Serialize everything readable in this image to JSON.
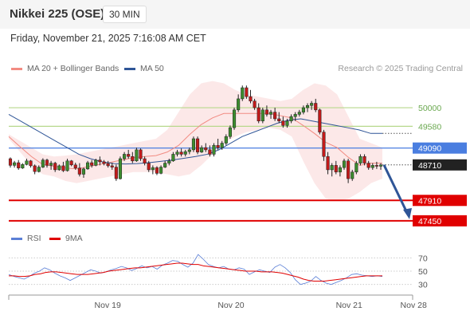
{
  "header": {
    "title": "Nikkei 225 (OSE)",
    "timeframe": "30 MIN"
  },
  "datetime": "Friday, November 21, 2025 7:16:08 AM CET",
  "legend": {
    "bollinger": {
      "label": "MA 20 + Bollinger Bands",
      "color": "#f28b82"
    },
    "ma50": {
      "label": "MA 50",
      "color": "#2f5597"
    }
  },
  "copyright": "Research © 2025 Trading Central",
  "rsi_legend": {
    "rsi": {
      "label": "RSI",
      "color": "#5b7fd6"
    },
    "ma9": {
      "label": "9MA",
      "color": "#e00000"
    }
  },
  "chart_data": {
    "type": "candlestick",
    "instrument": "Nikkei 225 (OSE)",
    "interval": "30 MIN",
    "price_range": [
      47250,
      50630
    ],
    "x_labels": [
      "Nov 19",
      "Nov 20",
      "Nov 21",
      "Nov 28"
    ],
    "x_label_positions": [
      0.227,
      0.51,
      0.781,
      0.929
    ],
    "resistance": [
      50000,
      49580
    ],
    "support": [
      47910,
      47450
    ],
    "pivot": 49090,
    "last_price": 48710,
    "levels_labeled": [
      "50000",
      "49580",
      "49090",
      "48710",
      "47910",
      "47450"
    ],
    "projection": {
      "from": 48710,
      "to": 47450,
      "direction": "down"
    },
    "candles": [
      [
        48850,
        48880,
        48650,
        48700
      ],
      [
        48700,
        48800,
        48650,
        48760
      ],
      [
        48760,
        48820,
        48600,
        48640
      ],
      [
        48640,
        48750,
        48620,
        48720
      ],
      [
        48720,
        48850,
        48700,
        48800
      ],
      [
        48800,
        48820,
        48650,
        48690
      ],
      [
        48690,
        48720,
        48500,
        48560
      ],
      [
        48560,
        48700,
        48540,
        48660
      ],
      [
        48660,
        48860,
        48640,
        48820
      ],
      [
        48820,
        48850,
        48650,
        48700
      ],
      [
        48700,
        48800,
        48600,
        48750
      ],
      [
        48750,
        48780,
        48550,
        48600
      ],
      [
        48600,
        48720,
        48580,
        48690
      ],
      [
        48690,
        48780,
        48550,
        48580
      ],
      [
        48580,
        48850,
        48560,
        48800
      ],
      [
        48800,
        48820,
        48680,
        48710
      ],
      [
        48710,
        48760,
        48600,
        48640
      ],
      [
        48640,
        48750,
        48450,
        48500
      ],
      [
        48500,
        48650,
        48420,
        48620
      ],
      [
        48620,
        48800,
        48600,
        48760
      ],
      [
        48760,
        48820,
        48650,
        48700
      ],
      [
        48700,
        48850,
        48680,
        48820
      ],
      [
        48820,
        48900,
        48700,
        48780
      ],
      [
        48780,
        48820,
        48700,
        48740
      ],
      [
        48740,
        48800,
        48650,
        48690
      ],
      [
        48690,
        48760,
        48600,
        48660
      ],
      [
        48660,
        48720,
        48350,
        48400
      ],
      [
        48400,
        48900,
        48380,
        48850
      ],
      [
        48850,
        49000,
        48800,
        48950
      ],
      [
        48950,
        49050,
        48850,
        48900
      ],
      [
        48900,
        49000,
        48750,
        48800
      ],
      [
        48800,
        49100,
        48780,
        49050
      ],
      [
        49050,
        49080,
        48800,
        48850
      ],
      [
        48850,
        48900,
        48700,
        48750
      ],
      [
        48750,
        48800,
        48550,
        48600
      ],
      [
        48600,
        48700,
        48500,
        48650
      ],
      [
        48650,
        48680,
        48480,
        48520
      ],
      [
        48520,
        48700,
        48500,
        48660
      ],
      [
        48660,
        48800,
        48640,
        48750
      ],
      [
        48750,
        48850,
        48700,
        48800
      ],
      [
        48800,
        49000,
        48780,
        48950
      ],
      [
        48950,
        49050,
        48900,
        49000
      ],
      [
        49000,
        49080,
        48900,
        48950
      ],
      [
        48950,
        49050,
        48900,
        49010
      ],
      [
        49010,
        49100,
        48950,
        49050
      ],
      [
        49050,
        49350,
        49000,
        49300
      ],
      [
        49300,
        49350,
        48950,
        49000
      ],
      [
        49000,
        49150,
        48980,
        49100
      ],
      [
        49100,
        49200,
        49000,
        49050
      ],
      [
        49050,
        49150,
        48900,
        48950
      ],
      [
        48950,
        49200,
        48900,
        49150
      ],
      [
        49150,
        49300,
        49050,
        49100
      ],
      [
        49100,
        49250,
        49050,
        49200
      ],
      [
        49200,
        49400,
        49150,
        49350
      ],
      [
        49350,
        49600,
        49300,
        49550
      ],
      [
        49550,
        50000,
        49500,
        49950
      ],
      [
        49950,
        50300,
        49900,
        50200
      ],
      [
        50200,
        50500,
        50150,
        50450
      ],
      [
        50450,
        50500,
        50200,
        50250
      ],
      [
        50250,
        50400,
        50100,
        50150
      ],
      [
        50150,
        50200,
        49950,
        50000
      ],
      [
        50000,
        50100,
        49650,
        49700
      ],
      [
        49700,
        50000,
        49650,
        49950
      ],
      [
        49950,
        50050,
        49800,
        49850
      ],
      [
        49850,
        49950,
        49750,
        49900
      ],
      [
        49900,
        50000,
        49700,
        49750
      ],
      [
        49750,
        49900,
        49650,
        49700
      ],
      [
        49700,
        49800,
        49550,
        49600
      ],
      [
        49600,
        49750,
        49550,
        49700
      ],
      [
        49700,
        49850,
        49650,
        49800
      ],
      [
        49800,
        49900,
        49700,
        49850
      ],
      [
        49850,
        49950,
        49800,
        49900
      ],
      [
        49900,
        50050,
        49850,
        50000
      ],
      [
        50000,
        50100,
        49900,
        50050
      ],
      [
        50050,
        50150,
        49950,
        50100
      ],
      [
        50100,
        50200,
        49900,
        49950
      ],
      [
        49950,
        49980,
        49400,
        49450
      ],
      [
        49450,
        49500,
        48800,
        48900
      ],
      [
        48900,
        49000,
        48500,
        48600
      ],
      [
        48600,
        48750,
        48450,
        48700
      ],
      [
        48700,
        48800,
        48500,
        48550
      ],
      [
        48550,
        48700,
        48450,
        48650
      ],
      [
        48650,
        48850,
        48600,
        48800
      ],
      [
        48800,
        48850,
        48300,
        48400
      ],
      [
        48400,
        48600,
        48350,
        48550
      ],
      [
        48550,
        48800,
        48500,
        48750
      ],
      [
        48750,
        48950,
        48700,
        48900
      ],
      [
        48900,
        48950,
        48700,
        48750
      ],
      [
        48750,
        48800,
        48600,
        48650
      ],
      [
        48650,
        48750,
        48600,
        48700
      ],
      [
        48700,
        48780,
        48620,
        48680
      ],
      [
        48680,
        48750,
        48600,
        48710
      ]
    ],
    "bollinger_upper": [
      49400,
      49250,
      49100,
      48950,
      48900,
      48920,
      48950,
      49000,
      49050,
      49100,
      49150,
      49200,
      49250,
      49300,
      49500,
      49900,
      50300,
      50550,
      50600,
      50550,
      50400,
      50300,
      50250,
      50200,
      50150,
      50200,
      50400,
      50550,
      50500,
      50300,
      49800,
      49300,
      49200,
      49100
    ],
    "bollinger_lower": [
      49300,
      49000,
      48700,
      48500,
      48450,
      48350,
      48300,
      48350,
      48400,
      48450,
      48500,
      48550,
      48550,
      48550,
      48500,
      48450,
      48500,
      48700,
      48950,
      49200,
      49350,
      49450,
      49500,
      49550,
      49500,
      49350,
      48800,
      48300,
      47950,
      47900,
      47950,
      48100,
      48300,
      48400
    ],
    "ma20": [
      49350,
      49120,
      48900,
      48720,
      48680,
      48640,
      48620,
      48670,
      48720,
      48770,
      48820,
      48870,
      48900,
      48920,
      49000,
      49150,
      49400,
      49620,
      49770,
      49870,
      49870,
      49870,
      49870,
      49870,
      49820,
      49770,
      49600,
      49420,
      49220,
      49100,
      48880,
      48700,
      48750,
      48750
    ],
    "ma50": [
      49850,
      49700,
      49550,
      49400,
      49250,
      49100,
      48950,
      48850,
      48780,
      48740,
      48730,
      48740,
      48760,
      48790,
      48820,
      48860,
      48900,
      48950,
      49050,
      49200,
      49350,
      49450,
      49550,
      49650,
      49720,
      49750,
      49700,
      49650,
      49600,
      49550,
      49500,
      49420,
      49420
    ],
    "rsi_levels": [
      70,
      50,
      30
    ],
    "rsi": [
      45,
      42,
      40,
      38,
      42,
      47,
      50,
      55,
      52,
      47,
      43,
      40,
      36,
      40,
      44,
      48,
      52,
      50,
      47,
      49,
      52,
      54,
      57,
      55,
      51,
      54,
      58,
      55,
      57,
      53,
      59,
      62,
      66,
      65,
      60,
      56,
      62,
      75,
      68,
      60,
      57,
      55,
      57,
      53,
      52,
      55,
      53,
      45,
      49,
      52,
      50,
      48,
      56,
      60,
      55,
      48,
      37,
      30,
      32,
      35,
      42,
      36,
      32,
      30,
      33,
      36,
      40,
      45,
      46,
      44,
      43,
      42,
      43,
      42
    ],
    "rsi_ma9": [
      43,
      43,
      42,
      42,
      43,
      45,
      46,
      48,
      49,
      49,
      48,
      47,
      46,
      45,
      45,
      45,
      46,
      47,
      48,
      50,
      51,
      52,
      53,
      54,
      55,
      55,
      56,
      57,
      58,
      59,
      60,
      61,
      62,
      62,
      61,
      60,
      60,
      58,
      57,
      56,
      55,
      54,
      53,
      52,
      51,
      50,
      50,
      50,
      49,
      49,
      49,
      48,
      47,
      45,
      43,
      41,
      38,
      36,
      35,
      35,
      35,
      36,
      37,
      38,
      39,
      40,
      41,
      42,
      43,
      43,
      43,
      43
    ],
    "rsi_x_labels": [
      "70",
      "50",
      "30"
    ]
  }
}
